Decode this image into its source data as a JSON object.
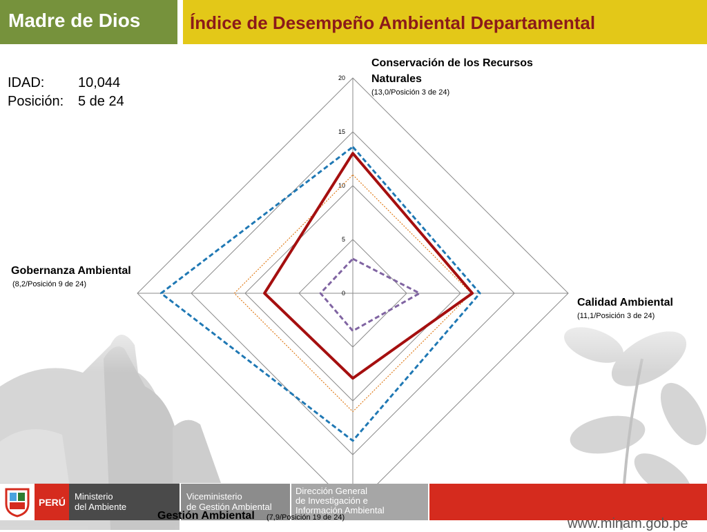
{
  "header": {
    "region": "Madre de Dios",
    "index_title": "Índice de Desempeño Ambiental Departamental"
  },
  "summary": {
    "idad_label": "IDAD:",
    "idad_value": "10,044",
    "position_label": "Posición:",
    "position_value": "5 de 24"
  },
  "axes": {
    "top": {
      "title_line1": "Conservación de los Recursos",
      "title_line2": "Naturales",
      "sub": "(13,0/Posición 3 de 24)"
    },
    "right": {
      "title": "Calidad Ambiental",
      "sub": "(11,1/Posición 3 de 24)"
    },
    "bottom": {
      "title": "Gestión Ambiental",
      "sub": "(7,9/Posición 19 de 24)"
    },
    "left": {
      "title": "Gobernanza Ambiental",
      "sub": "(8,2/Posición 9 de 24)"
    }
  },
  "chart_data": {
    "type": "radar",
    "axes": [
      "Conservación de los Recursos Naturales",
      "Calidad Ambiental",
      "Gestión Ambiental",
      "Gobernanza Ambiental"
    ],
    "rmax": 20,
    "ticks": [
      0,
      5,
      10,
      15,
      20
    ],
    "tick_labels": [
      "0",
      "5",
      "10",
      "15",
      "20"
    ],
    "series": [
      {
        "values": [
          13.0,
          11.1,
          7.9,
          8.2
        ],
        "color": "#a50f0f",
        "style": "solid"
      },
      {
        "values": [
          13.6,
          11.8,
          13.7,
          17.8
        ],
        "color": "#1f78b4",
        "style": "dashed"
      },
      {
        "values": [
          11.0,
          11.0,
          11.0,
          11.0
        ],
        "color": "#e07b18",
        "style": "dotted"
      },
      {
        "values": [
          3.2,
          6.2,
          3.5,
          3.0
        ],
        "color": "#8064a2",
        "style": "dashed"
      }
    ]
  },
  "footer": {
    "peru": "PERÚ",
    "ministry_line1": "Ministerio",
    "ministry_line2": "del Ambiente",
    "vice_line1": "Viceministerio",
    "vice_line2": "de Gestión Ambiental",
    "dir_line1": "Dirección General",
    "dir_line2": "de Investigación e",
    "dir_line3": "Información Ambiental",
    "url": "www.minam.gob.pe",
    "colors": {
      "red": "#d52b1e",
      "dark": "#4a4a4a",
      "gray": "#8c8c8c"
    }
  }
}
